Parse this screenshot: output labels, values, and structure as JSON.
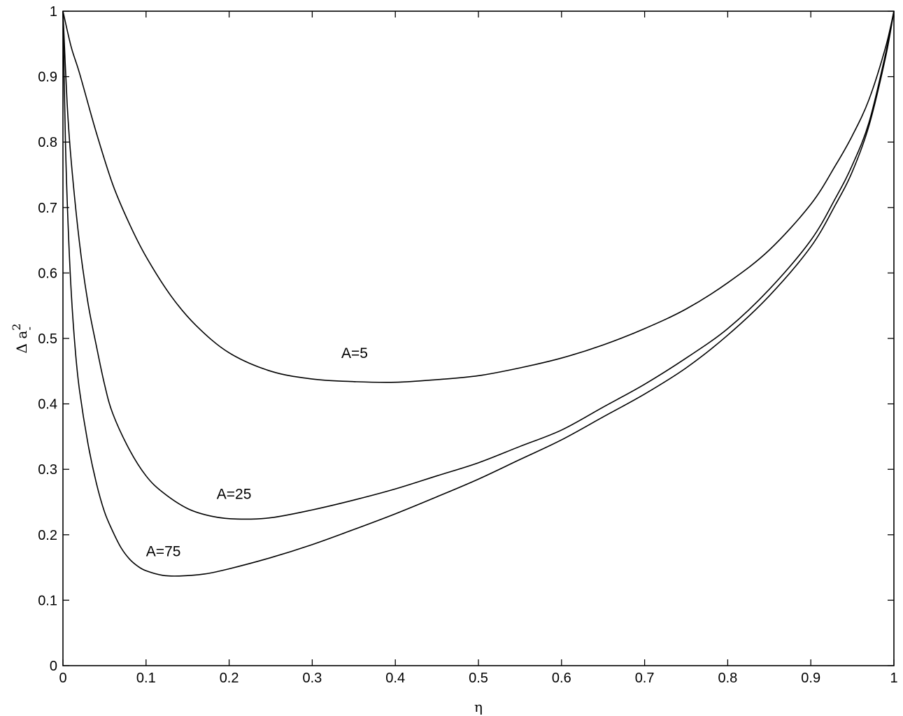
{
  "chart_data": {
    "type": "line",
    "title": "",
    "xlabel": "η",
    "ylabel": "Δ a",
    "ylabel_superscript": "2",
    "ylabel_subscript": "-",
    "xlim": [
      0,
      1
    ],
    "ylim": [
      0,
      1
    ],
    "grid": false,
    "x_ticks": [
      0,
      0.1,
      0.2,
      0.3,
      0.4,
      0.5,
      0.6,
      0.7,
      0.8,
      0.9,
      1
    ],
    "x_tick_labels": [
      "0",
      "0.1",
      "0.2",
      "0.3",
      "0.4",
      "0.5",
      "0.6",
      "0.7",
      "0.8",
      "0.9",
      "1"
    ],
    "y_ticks": [
      0,
      0.1,
      0.2,
      0.3,
      0.4,
      0.5,
      0.6,
      0.7,
      0.8,
      0.9,
      1
    ],
    "y_tick_labels": [
      "0",
      "0.1",
      "0.2",
      "0.3",
      "0.4",
      "0.5",
      "0.6",
      "0.7",
      "0.8",
      "0.9",
      "1"
    ],
    "series": [
      {
        "x": [
          0,
          0.01,
          0.02,
          0.04,
          0.06,
          0.08,
          0.1,
          0.13,
          0.16,
          0.2,
          0.25,
          0.3,
          0.35,
          0.4,
          0.45,
          0.5,
          0.55,
          0.6,
          0.65,
          0.7,
          0.75,
          0.8,
          0.85,
          0.9,
          0.93,
          0.95,
          0.97,
          0.99,
          1
        ],
        "y": [
          1.0,
          0.945,
          0.905,
          0.815,
          0.735,
          0.675,
          0.625,
          0.565,
          0.52,
          0.478,
          0.45,
          0.438,
          0.434,
          0.433,
          0.437,
          0.443,
          0.455,
          0.47,
          0.49,
          0.515,
          0.545,
          0.585,
          0.635,
          0.705,
          0.765,
          0.81,
          0.865,
          0.945,
          1.0
        ]
      },
      {
        "x": [
          0,
          0.005,
          0.01,
          0.02,
          0.03,
          0.04,
          0.05,
          0.06,
          0.08,
          0.1,
          0.12,
          0.15,
          0.18,
          0.21,
          0.25,
          0.3,
          0.35,
          0.4,
          0.45,
          0.5,
          0.55,
          0.6,
          0.65,
          0.7,
          0.75,
          0.8,
          0.85,
          0.9,
          0.93,
          0.95,
          0.97,
          0.99,
          1
        ],
        "y": [
          1.0,
          0.86,
          0.77,
          0.645,
          0.555,
          0.49,
          0.43,
          0.385,
          0.33,
          0.29,
          0.265,
          0.24,
          0.228,
          0.224,
          0.226,
          0.238,
          0.253,
          0.27,
          0.29,
          0.31,
          0.335,
          0.36,
          0.395,
          0.43,
          0.47,
          0.515,
          0.575,
          0.65,
          0.715,
          0.765,
          0.83,
          0.935,
          1.0
        ]
      },
      {
        "x": [
          0,
          0.003,
          0.006,
          0.01,
          0.015,
          0.02,
          0.03,
          0.04,
          0.05,
          0.06,
          0.07,
          0.08,
          0.09,
          0.1,
          0.12,
          0.14,
          0.17,
          0.2,
          0.25,
          0.3,
          0.35,
          0.4,
          0.45,
          0.5,
          0.55,
          0.6,
          0.65,
          0.7,
          0.75,
          0.8,
          0.85,
          0.9,
          0.93,
          0.95,
          0.97,
          0.99,
          1
        ],
        "y": [
          1.0,
          0.8,
          0.68,
          0.57,
          0.48,
          0.42,
          0.34,
          0.28,
          0.235,
          0.205,
          0.18,
          0.163,
          0.152,
          0.145,
          0.138,
          0.137,
          0.14,
          0.148,
          0.165,
          0.185,
          0.208,
          0.232,
          0.258,
          0.285,
          0.315,
          0.345,
          0.38,
          0.415,
          0.455,
          0.505,
          0.565,
          0.64,
          0.705,
          0.755,
          0.825,
          0.93,
          1.0
        ]
      }
    ],
    "annotations": [
      {
        "text": "A=5",
        "x": 0.335,
        "y": 0.47
      },
      {
        "text": "A=25",
        "x": 0.185,
        "y": 0.255
      },
      {
        "text": "A=75",
        "x": 0.1,
        "y": 0.167
      }
    ]
  }
}
